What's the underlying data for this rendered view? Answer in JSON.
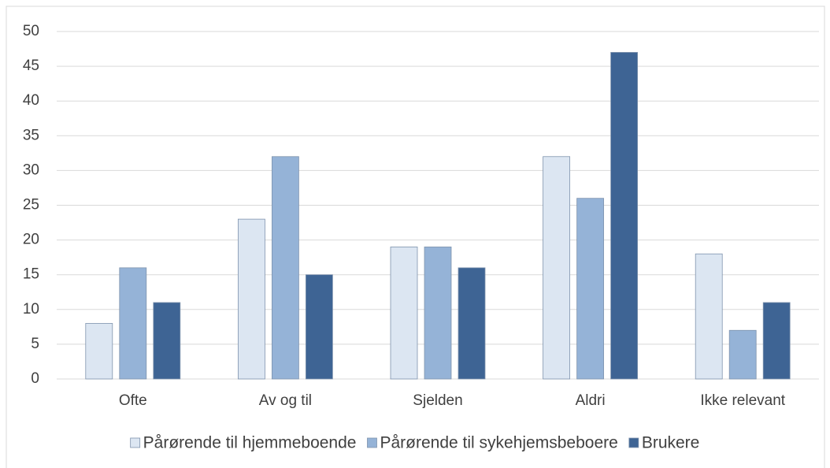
{
  "chart_data": {
    "type": "bar",
    "categories": [
      "Ofte",
      "Av og til",
      "Sjelden",
      "Aldri",
      "Ikke relevant"
    ],
    "series": [
      {
        "name": "Pårørende til hjemmeboende",
        "color": "#dce6f2",
        "values": [
          8,
          23,
          19,
          32,
          18
        ]
      },
      {
        "name": "Pårørende til sykehjemsbeboere",
        "color": "#95b3d7",
        "values": [
          16,
          32,
          19,
          26,
          7
        ]
      },
      {
        "name": "Brukere",
        "color": "#3e6494",
        "values": [
          11,
          15,
          16,
          47,
          11
        ]
      }
    ],
    "ylim": [
      0,
      50
    ],
    "yticks": [
      0,
      5,
      10,
      15,
      20,
      25,
      30,
      35,
      40,
      45,
      50
    ],
    "grid": true,
    "legend": "bottom"
  }
}
